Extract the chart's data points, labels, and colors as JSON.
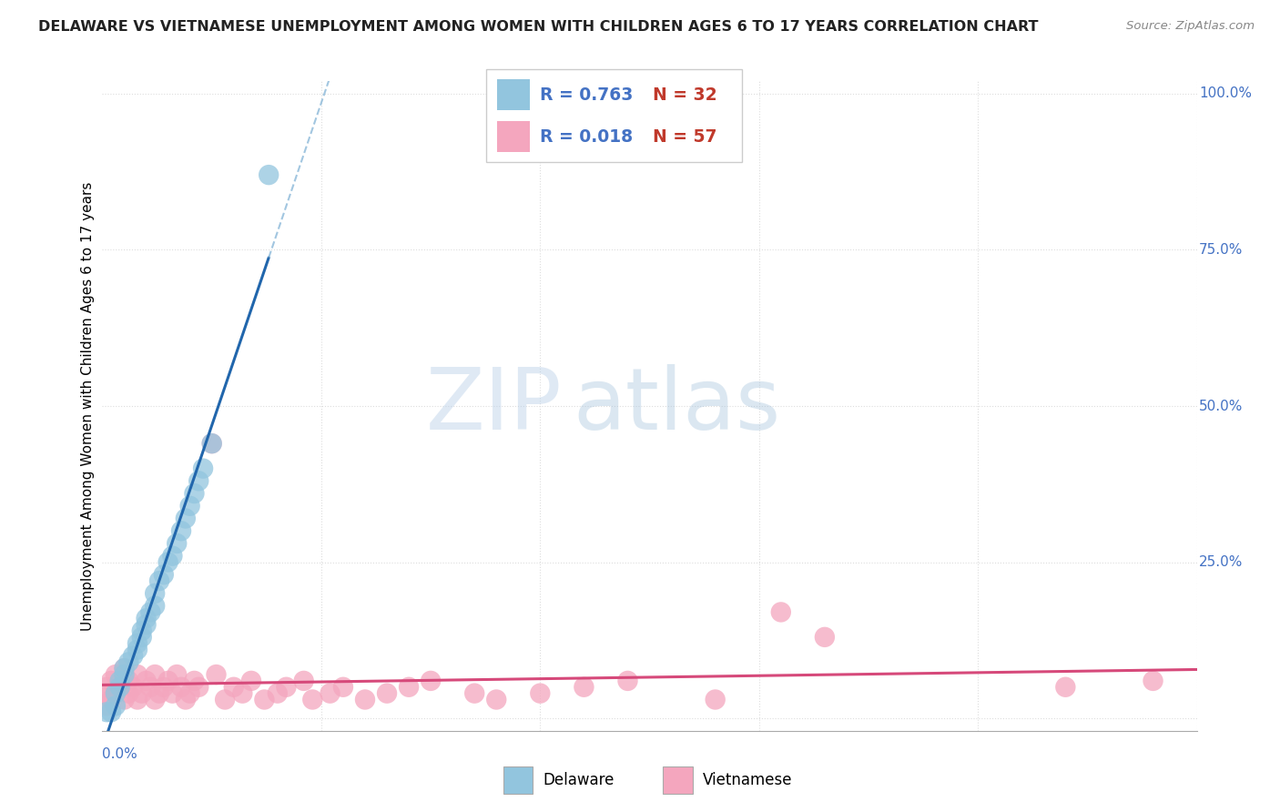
{
  "title": "DELAWARE VS VIETNAMESE UNEMPLOYMENT AMONG WOMEN WITH CHILDREN AGES 6 TO 17 YEARS CORRELATION CHART",
  "source": "Source: ZipAtlas.com",
  "ylabel": "Unemployment Among Women with Children Ages 6 to 17 years",
  "watermark_zip": "ZIP",
  "watermark_atlas": "atlas",
  "r_delaware": "0.763",
  "n_delaware": "32",
  "r_vietnamese": "0.018",
  "n_vietnamese": "57",
  "delaware_dot_color": "#92c5de",
  "delaware_line_color": "#2166ac",
  "delaware_dash_color": "#7bafd4",
  "vietnamese_dot_color": "#f4a6be",
  "vietnamese_line_color": "#d6497a",
  "r_color": "#4472c4",
  "n_color": "#c0392b",
  "grid_color": "#dddddd",
  "watermark_color": "#c8dff0",
  "title_color": "#222222",
  "source_color": "#888888",
  "background": "#ffffff",
  "xmin": 0.0,
  "xmax": 0.25,
  "ymin": -0.02,
  "ymax": 1.02,
  "del_x": [
    0.001,
    0.002,
    0.003,
    0.003,
    0.004,
    0.004,
    0.005,
    0.005,
    0.006,
    0.007,
    0.008,
    0.008,
    0.009,
    0.009,
    0.01,
    0.01,
    0.011,
    0.012,
    0.012,
    0.013,
    0.014,
    0.015,
    0.016,
    0.017,
    0.018,
    0.019,
    0.02,
    0.021,
    0.022,
    0.023,
    0.025,
    0.038
  ],
  "del_y": [
    0.01,
    0.01,
    0.02,
    0.04,
    0.05,
    0.06,
    0.07,
    0.08,
    0.09,
    0.1,
    0.11,
    0.12,
    0.13,
    0.14,
    0.15,
    0.16,
    0.17,
    0.18,
    0.2,
    0.22,
    0.23,
    0.25,
    0.26,
    0.28,
    0.3,
    0.32,
    0.34,
    0.36,
    0.38,
    0.4,
    0.44,
    0.87
  ],
  "viet_x": [
    0.0,
    0.001,
    0.001,
    0.002,
    0.002,
    0.003,
    0.003,
    0.004,
    0.005,
    0.005,
    0.006,
    0.006,
    0.007,
    0.008,
    0.008,
    0.009,
    0.01,
    0.011,
    0.012,
    0.012,
    0.013,
    0.014,
    0.015,
    0.016,
    0.017,
    0.018,
    0.019,
    0.02,
    0.021,
    0.022,
    0.025,
    0.026,
    0.028,
    0.03,
    0.032,
    0.034,
    0.037,
    0.04,
    0.042,
    0.046,
    0.048,
    0.052,
    0.055,
    0.06,
    0.065,
    0.07,
    0.075,
    0.085,
    0.09,
    0.1,
    0.11,
    0.12,
    0.14,
    0.155,
    0.165,
    0.22,
    0.24
  ],
  "viet_y": [
    0.04,
    0.02,
    0.05,
    0.03,
    0.06,
    0.04,
    0.07,
    0.05,
    0.03,
    0.08,
    0.04,
    0.06,
    0.05,
    0.03,
    0.07,
    0.04,
    0.06,
    0.05,
    0.03,
    0.07,
    0.04,
    0.05,
    0.06,
    0.04,
    0.07,
    0.05,
    0.03,
    0.04,
    0.06,
    0.05,
    0.44,
    0.07,
    0.03,
    0.05,
    0.04,
    0.06,
    0.03,
    0.04,
    0.05,
    0.06,
    0.03,
    0.04,
    0.05,
    0.03,
    0.04,
    0.05,
    0.06,
    0.04,
    0.03,
    0.04,
    0.05,
    0.06,
    0.03,
    0.17,
    0.13,
    0.05,
    0.06
  ]
}
